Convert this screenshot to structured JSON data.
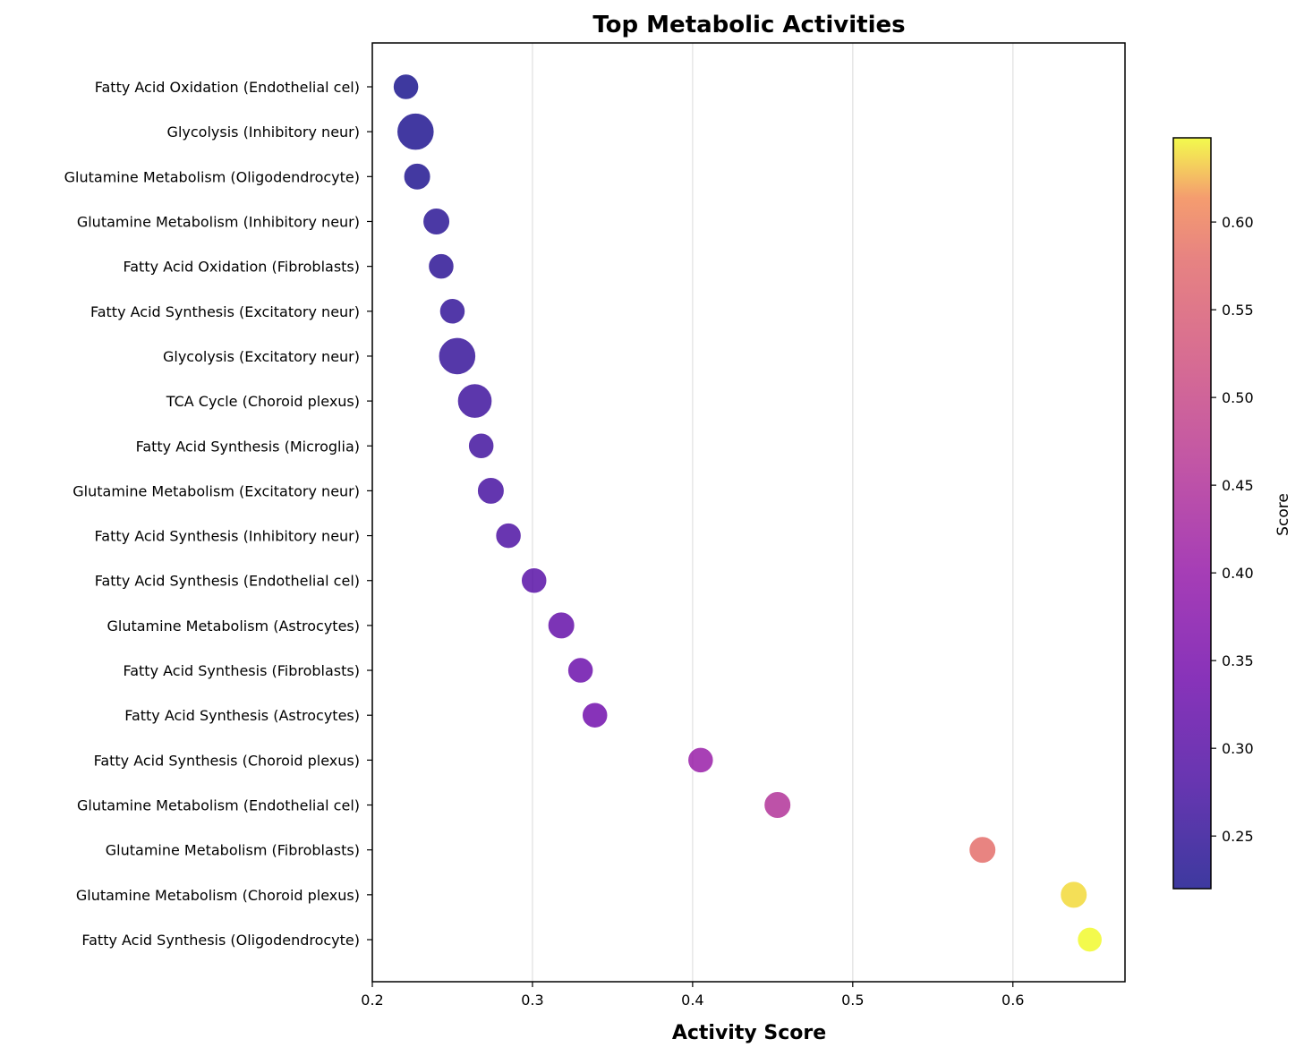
{
  "chart_data": {
    "type": "scatter",
    "title": "Top Metabolic Activities",
    "xlabel": "Activity Score",
    "ylabel": "",
    "xlim": [
      0.2,
      0.67
    ],
    "xticks": [
      0.2,
      0.3,
      0.4,
      0.5,
      0.6
    ],
    "grid": "vertical",
    "colormap": "plasma",
    "colorbar": {
      "label": "Score",
      "range": [
        0.22,
        0.648
      ],
      "ticks": [
        0.25,
        0.3,
        0.35,
        0.4,
        0.45,
        0.5,
        0.55,
        0.6
      ]
    },
    "points": [
      {
        "label": "Fatty Acid Oxidation (Endothelial cel)",
        "x": 0.221,
        "size": 1.0
      },
      {
        "label": "Glycolysis (Inhibitory neur)",
        "x": 0.227,
        "size": 1.45
      },
      {
        "label": "Glutamine Metabolism (Oligodendrocyte)",
        "x": 0.228,
        "size": 1.05
      },
      {
        "label": "Glutamine Metabolism (Inhibitory neur)",
        "x": 0.24,
        "size": 1.05
      },
      {
        "label": "Fatty Acid Oxidation (Fibroblasts)",
        "x": 0.243,
        "size": 1.0
      },
      {
        "label": "Fatty Acid Synthesis (Excitatory neur)",
        "x": 0.25,
        "size": 1.0
      },
      {
        "label": "Glycolysis (Excitatory neur)",
        "x": 0.253,
        "size": 1.45
      },
      {
        "label": "TCA Cycle (Choroid plexus)",
        "x": 0.264,
        "size": 1.35
      },
      {
        "label": "Fatty Acid Synthesis (Microglia)",
        "x": 0.268,
        "size": 1.0
      },
      {
        "label": "Glutamine Metabolism (Excitatory neur)",
        "x": 0.274,
        "size": 1.05
      },
      {
        "label": "Fatty Acid Synthesis (Inhibitory neur)",
        "x": 0.285,
        "size": 1.0
      },
      {
        "label": "Fatty Acid Synthesis (Endothelial cel)",
        "x": 0.301,
        "size": 1.0
      },
      {
        "label": "Glutamine Metabolism (Astrocytes)",
        "x": 0.318,
        "size": 1.05
      },
      {
        "label": "Fatty Acid Synthesis (Fibroblasts)",
        "x": 0.33,
        "size": 1.0
      },
      {
        "label": "Fatty Acid Synthesis (Astrocytes)",
        "x": 0.339,
        "size": 1.0
      },
      {
        "label": "Fatty Acid Synthesis (Choroid plexus)",
        "x": 0.405,
        "size": 1.0
      },
      {
        "label": "Glutamine Metabolism (Endothelial cel)",
        "x": 0.453,
        "size": 1.05
      },
      {
        "label": "Glutamine Metabolism (Fibroblasts)",
        "x": 0.581,
        "size": 1.05
      },
      {
        "label": "Glutamine Metabolism (Choroid plexus)",
        "x": 0.638,
        "size": 1.05
      },
      {
        "label": "Fatty Acid Synthesis (Oligodendrocyte)",
        "x": 0.648,
        "size": 0.97
      }
    ]
  }
}
